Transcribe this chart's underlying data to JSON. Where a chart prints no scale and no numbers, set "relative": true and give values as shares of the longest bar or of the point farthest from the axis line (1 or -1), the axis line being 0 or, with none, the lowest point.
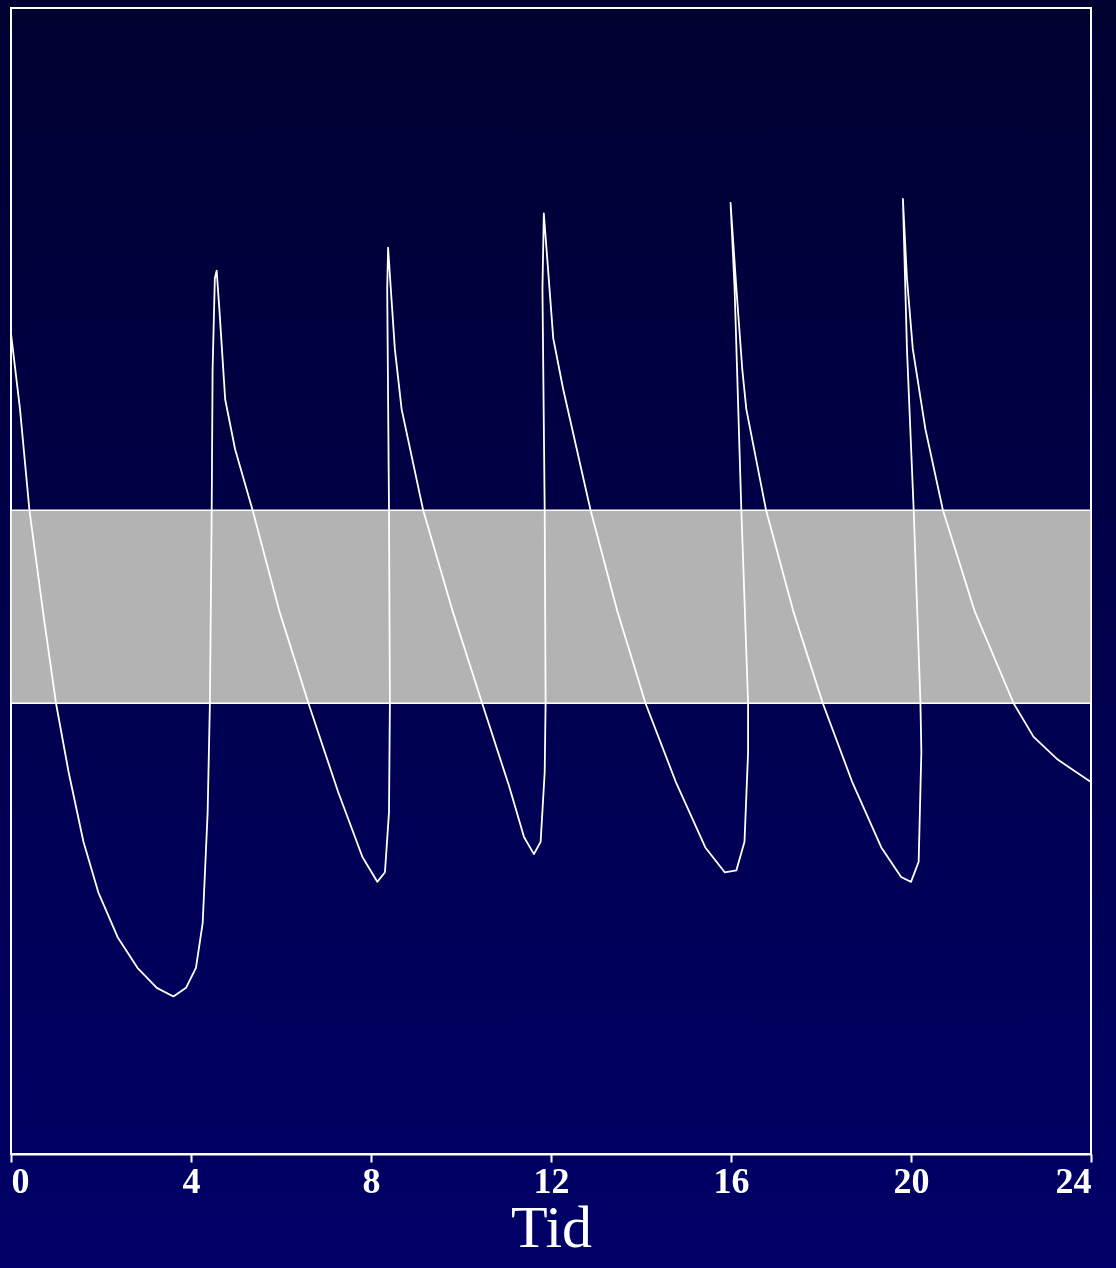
{
  "chart_data": {
    "type": "line",
    "relative": true,
    "xlabel": "Tid",
    "xlim": [
      0,
      24
    ],
    "xticks": [
      0,
      4,
      8,
      12,
      16,
      20,
      24
    ],
    "grid": false,
    "marker": "none",
    "line_style": "solid",
    "bands": [
      {
        "axis": "y",
        "from": 0.472,
        "to": 0.674,
        "color": "#b3b3b3"
      }
    ],
    "series": [
      {
        "color": "#ffffff",
        "x": [
          0,
          0.2,
          0.41,
          0.74,
          1.0,
          1.28,
          1.61,
          1.94,
          2.37,
          2.81,
          3.24,
          3.61,
          3.89,
          4.11,
          4.26,
          4.37,
          4.42,
          4.46,
          4.48,
          4.53,
          4.57,
          4.63,
          4.76,
          4.98,
          5.37,
          5.96,
          6.61,
          7.27,
          7.81,
          8.14,
          8.31,
          8.4,
          8.42,
          8.4,
          8.36,
          8.38,
          8.44,
          8.53,
          8.68,
          9.16,
          9.81,
          10.47,
          11.07,
          11.4,
          11.62,
          11.77,
          11.86,
          11.88,
          11.86,
          11.81,
          11.84,
          11.9,
          12.05,
          12.27,
          12.88,
          13.47,
          14.1,
          14.77,
          15.43,
          15.86,
          16.12,
          16.3,
          16.38,
          16.38,
          16.23,
          16.08,
          15.99,
          16.12,
          16.25,
          16.34,
          16.78,
          17.38,
          18.04,
          18.69,
          19.34,
          19.78,
          20.0,
          20.17,
          20.23,
          20.21,
          20.06,
          19.91,
          19.82,
          19.91,
          20.04,
          20.32,
          20.71,
          21.41,
          22.28,
          22.72,
          23.26,
          23.98
        ],
        "values": [
          0.859,
          0.78,
          0.674,
          0.558,
          0.472,
          0.4,
          0.327,
          0.274,
          0.227,
          0.195,
          0.174,
          0.165,
          0.174,
          0.195,
          0.242,
          0.358,
          0.472,
          0.674,
          0.822,
          0.917,
          0.925,
          0.885,
          0.79,
          0.738,
          0.674,
          0.569,
          0.472,
          0.379,
          0.311,
          0.285,
          0.295,
          0.358,
          0.472,
          0.674,
          0.906,
          0.949,
          0.906,
          0.843,
          0.78,
          0.674,
          0.569,
          0.472,
          0.385,
          0.332,
          0.314,
          0.327,
          0.4,
          0.472,
          0.674,
          0.906,
          0.985,
          0.948,
          0.854,
          0.801,
          0.674,
          0.569,
          0.472,
          0.39,
          0.321,
          0.295,
          0.297,
          0.327,
          0.421,
          0.472,
          0.674,
          0.906,
          0.996,
          0.906,
          0.822,
          0.78,
          0.674,
          0.569,
          0.472,
          0.39,
          0.321,
          0.29,
          0.285,
          0.306,
          0.421,
          0.472,
          0.674,
          0.843,
          1.0,
          0.917,
          0.843,
          0.759,
          0.674,
          0.569,
          0.472,
          0.437,
          0.413,
          0.39
        ]
      }
    ]
  }
}
